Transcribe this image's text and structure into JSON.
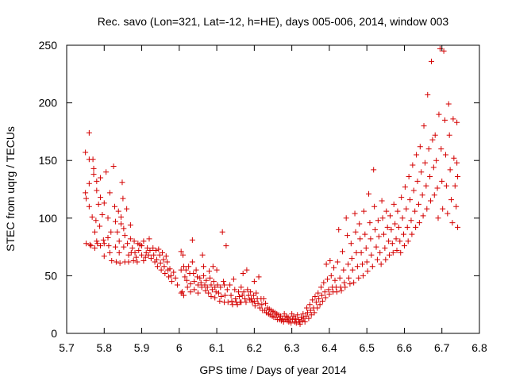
{
  "chart_data": {
    "type": "scatter",
    "title": "Rec. savo (Lon=321, Lat=-12, h=HE), days 005-006, 2014, window 003",
    "xlabel": "GPS time / Days of year 2014",
    "ylabel": "STEC from uqrg / TECUs",
    "xlim": [
      5.7,
      6.8
    ],
    "ylim": [
      0,
      250
    ],
    "xticks": [
      5.7,
      5.8,
      5.9,
      6,
      6.1,
      6.2,
      6.3,
      6.4,
      6.5,
      6.6,
      6.7,
      6.8
    ],
    "xtick_labels": [
      "5.7",
      "5.8",
      "5.9",
      "6",
      "6.1",
      "6.2",
      "6.3",
      "6.4",
      "6.5",
      "6.6",
      "6.7",
      "6.8"
    ],
    "yticks": [
      0,
      50,
      100,
      150,
      200,
      250
    ],
    "ytick_labels": [
      "0",
      "50",
      "100",
      "150",
      "200",
      "250"
    ],
    "marker": "+",
    "color": "#d40000",
    "grid": false,
    "legend": "none",
    "points": [
      [
        5.75,
        157
      ],
      [
        5.75,
        122
      ],
      [
        5.752,
        117
      ],
      [
        5.752,
        78
      ],
      [
        5.76,
        174
      ],
      [
        5.76,
        151
      ],
      [
        5.76,
        130
      ],
      [
        5.76,
        110
      ],
      [
        5.762,
        77
      ],
      [
        5.765,
        76
      ],
      [
        5.768,
        101
      ],
      [
        5.77,
        151
      ],
      [
        5.772,
        143
      ],
      [
        5.772,
        138
      ],
      [
        5.775,
        88
      ],
      [
        5.775,
        74
      ],
      [
        5.778,
        98
      ],
      [
        5.78,
        132
      ],
      [
        5.78,
        124
      ],
      [
        5.78,
        80
      ],
      [
        5.782,
        78
      ],
      [
        5.785,
        112
      ],
      [
        5.788,
        93
      ],
      [
        5.79,
        135
      ],
      [
        5.79,
        118
      ],
      [
        5.79,
        76
      ],
      [
        5.795,
        103
      ],
      [
        5.798,
        81
      ],
      [
        5.8,
        113
      ],
      [
        5.8,
        78
      ],
      [
        5.8,
        67
      ],
      [
        5.805,
        140
      ],
      [
        5.81,
        100
      ],
      [
        5.81,
        83
      ],
      [
        5.812,
        76
      ],
      [
        5.815,
        122
      ],
      [
        5.815,
        70
      ],
      [
        5.818,
        88
      ],
      [
        5.82,
        63
      ],
      [
        5.825,
        145
      ],
      [
        5.828,
        110
      ],
      [
        5.83,
        97
      ],
      [
        5.83,
        75
      ],
      [
        5.832,
        62
      ],
      [
        5.835,
        88
      ],
      [
        5.838,
        106
      ],
      [
        5.84,
        80
      ],
      [
        5.84,
        70
      ],
      [
        5.842,
        61
      ],
      [
        5.845,
        101
      ],
      [
        5.845,
        95
      ],
      [
        5.848,
        131
      ],
      [
        5.85,
        117
      ],
      [
        5.852,
        91
      ],
      [
        5.852,
        75
      ],
      [
        5.855,
        85
      ],
      [
        5.855,
        62
      ],
      [
        5.86,
        108
      ],
      [
        5.862,
        78
      ],
      [
        5.865,
        68
      ],
      [
        5.865,
        62
      ],
      [
        5.87,
        94
      ],
      [
        5.87,
        82
      ],
      [
        5.872,
        70
      ],
      [
        5.875,
        74
      ],
      [
        5.878,
        63
      ],
      [
        5.88,
        80
      ],
      [
        5.882,
        70
      ],
      [
        5.885,
        66
      ],
      [
        5.888,
        62
      ],
      [
        5.89,
        78
      ],
      [
        5.892,
        72
      ],
      [
        5.895,
        77
      ],
      [
        5.9,
        68
      ],
      [
        5.9,
        76
      ],
      [
        5.905,
        63
      ],
      [
        5.905,
        80
      ],
      [
        5.91,
        66
      ],
      [
        5.912,
        70
      ],
      [
        5.915,
        74
      ],
      [
        5.918,
        68
      ],
      [
        5.92,
        82
      ],
      [
        5.922,
        72
      ],
      [
        5.925,
        65
      ],
      [
        5.93,
        74
      ],
      [
        5.932,
        68
      ],
      [
        5.935,
        62
      ],
      [
        5.938,
        72
      ],
      [
        5.94,
        64
      ],
      [
        5.942,
        58
      ],
      [
        5.945,
        73
      ],
      [
        5.948,
        68
      ],
      [
        5.95,
        61
      ],
      [
        5.952,
        55
      ],
      [
        5.955,
        70
      ],
      [
        5.958,
        64
      ],
      [
        5.96,
        58
      ],
      [
        5.962,
        52
      ],
      [
        5.965,
        67
      ],
      [
        5.968,
        62
      ],
      [
        5.97,
        55
      ],
      [
        5.972,
        49
      ],
      [
        5.975,
        56
      ],
      [
        5.978,
        50
      ],
      [
        5.98,
        45
      ],
      [
        5.985,
        53
      ],
      [
        5.99,
        48
      ],
      [
        5.995,
        42
      ],
      [
        6.005,
        71
      ],
      [
        6.005,
        55
      ],
      [
        6.005,
        35
      ],
      [
        6.008,
        36
      ],
      [
        6.01,
        68
      ],
      [
        6.012,
        58
      ],
      [
        6.012,
        33
      ],
      [
        6.015,
        49
      ],
      [
        6.018,
        55
      ],
      [
        6.02,
        46
      ],
      [
        6.022,
        40
      ],
      [
        6.025,
        58
      ],
      [
        6.028,
        52
      ],
      [
        6.03,
        43
      ],
      [
        6.03,
        36
      ],
      [
        6.035,
        81
      ],
      [
        6.035,
        62
      ],
      [
        6.038,
        52
      ],
      [
        6.04,
        45
      ],
      [
        6.04,
        38
      ],
      [
        6.045,
        55
      ],
      [
        6.048,
        49
      ],
      [
        6.05,
        42
      ],
      [
        6.05,
        35
      ],
      [
        6.055,
        48
      ],
      [
        6.058,
        44
      ],
      [
        6.06,
        40
      ],
      [
        6.062,
        68
      ],
      [
        6.065,
        58
      ],
      [
        6.065,
        50
      ],
      [
        6.068,
        42
      ],
      [
        6.07,
        37
      ],
      [
        6.072,
        46
      ],
      [
        6.075,
        40
      ],
      [
        6.078,
        35
      ],
      [
        6.08,
        54
      ],
      [
        6.082,
        48
      ],
      [
        6.085,
        42
      ],
      [
        6.085,
        32
      ],
      [
        6.088,
        38
      ],
      [
        6.09,
        58
      ],
      [
        6.092,
        45
      ],
      [
        6.095,
        40
      ],
      [
        6.095,
        31
      ],
      [
        6.098,
        36
      ],
      [
        6.1,
        55
      ],
      [
        6.102,
        42
      ],
      [
        6.105,
        35
      ],
      [
        6.108,
        28
      ],
      [
        6.11,
        40
      ],
      [
        6.112,
        32
      ],
      [
        6.115,
        88
      ],
      [
        6.118,
        45
      ],
      [
        6.12,
        42
      ],
      [
        6.12,
        27
      ],
      [
        6.122,
        33
      ],
      [
        6.125,
        76
      ],
      [
        6.128,
        38
      ],
      [
        6.13,
        27
      ],
      [
        6.135,
        42
      ],
      [
        6.138,
        33
      ],
      [
        6.14,
        28
      ],
      [
        6.142,
        25
      ],
      [
        6.145,
        47
      ],
      [
        6.148,
        38
      ],
      [
        6.15,
        30
      ],
      [
        6.152,
        27
      ],
      [
        6.155,
        25
      ],
      [
        6.158,
        36
      ],
      [
        6.16,
        32
      ],
      [
        6.162,
        27
      ],
      [
        6.165,
        40
      ],
      [
        6.165,
        27
      ],
      [
        6.168,
        33
      ],
      [
        6.17,
        52
      ],
      [
        6.172,
        36
      ],
      [
        6.175,
        30
      ],
      [
        6.178,
        27
      ],
      [
        6.18,
        55
      ],
      [
        6.182,
        38
      ],
      [
        6.185,
        33
      ],
      [
        6.188,
        29
      ],
      [
        6.19,
        36
      ],
      [
        6.192,
        30
      ],
      [
        6.195,
        27
      ],
      [
        6.198,
        33
      ],
      [
        6.2,
        45
      ],
      [
        6.2,
        28
      ],
      [
        6.202,
        24
      ],
      [
        6.205,
        35
      ],
      [
        6.208,
        30
      ],
      [
        6.21,
        26
      ],
      [
        6.212,
        49
      ],
      [
        6.215,
        22
      ],
      [
        6.218,
        30
      ],
      [
        6.22,
        25
      ],
      [
        6.222,
        20
      ],
      [
        6.225,
        30
      ],
      [
        6.228,
        20
      ],
      [
        6.23,
        26
      ],
      [
        6.232,
        18
      ],
      [
        6.235,
        22
      ],
      [
        6.238,
        17
      ],
      [
        6.24,
        21
      ],
      [
        6.242,
        16
      ],
      [
        6.245,
        20
      ],
      [
        6.248,
        15
      ],
      [
        6.25,
        19
      ],
      [
        6.252,
        14
      ],
      [
        6.255,
        18
      ],
      [
        6.258,
        14
      ],
      [
        6.26,
        17
      ],
      [
        6.262,
        12
      ],
      [
        6.265,
        16
      ],
      [
        6.268,
        12
      ],
      [
        6.27,
        15
      ],
      [
        6.272,
        11
      ],
      [
        6.275,
        13
      ],
      [
        6.278,
        10
      ],
      [
        6.28,
        17
      ],
      [
        6.282,
        12
      ],
      [
        6.285,
        15
      ],
      [
        6.288,
        11
      ],
      [
        6.29,
        14
      ],
      [
        6.292,
        10
      ],
      [
        6.295,
        13
      ],
      [
        6.298,
        9
      ],
      [
        6.3,
        17
      ],
      [
        6.302,
        12
      ],
      [
        6.305,
        15
      ],
      [
        6.308,
        10
      ],
      [
        6.31,
        13
      ],
      [
        6.312,
        9
      ],
      [
        6.315,
        16
      ],
      [
        6.318,
        12
      ],
      [
        6.32,
        10
      ],
      [
        6.322,
        8
      ],
      [
        6.325,
        14
      ],
      [
        6.328,
        11
      ],
      [
        6.33,
        17
      ],
      [
        6.332,
        13
      ],
      [
        6.335,
        10
      ],
      [
        6.338,
        15
      ],
      [
        6.34,
        22
      ],
      [
        6.342,
        18
      ],
      [
        6.345,
        13
      ],
      [
        6.348,
        25
      ],
      [
        6.35,
        20
      ],
      [
        6.352,
        16
      ],
      [
        6.355,
        29
      ],
      [
        6.358,
        22
      ],
      [
        6.36,
        18
      ],
      [
        6.362,
        32
      ],
      [
        6.365,
        27
      ],
      [
        6.368,
        22
      ],
      [
        6.37,
        35
      ],
      [
        6.372,
        30
      ],
      [
        6.375,
        25
      ],
      [
        6.378,
        40
      ],
      [
        6.38,
        33
      ],
      [
        6.382,
        28
      ],
      [
        6.385,
        44
      ],
      [
        6.388,
        36
      ],
      [
        6.39,
        31
      ],
      [
        6.392,
        60
      ],
      [
        6.395,
        47
      ],
      [
        6.398,
        38
      ],
      [
        6.4,
        34
      ],
      [
        6.402,
        63
      ],
      [
        6.405,
        50
      ],
      [
        6.408,
        40
      ],
      [
        6.41,
        36
      ],
      [
        6.412,
        57
      ],
      [
        6.415,
        46
      ],
      [
        6.418,
        40
      ],
      [
        6.42,
        36
      ],
      [
        6.422,
        62
      ],
      [
        6.425,
        90
      ],
      [
        6.428,
        48
      ],
      [
        6.43,
        40
      ],
      [
        6.432,
        37
      ],
      [
        6.435,
        71
      ],
      [
        6.438,
        55
      ],
      [
        6.44,
        44
      ],
      [
        6.442,
        40
      ],
      [
        6.445,
        100
      ],
      [
        6.448,
        85
      ],
      [
        6.45,
        60
      ],
      [
        6.452,
        48
      ],
      [
        6.455,
        43
      ],
      [
        6.458,
        78
      ],
      [
        6.46,
        65
      ],
      [
        6.462,
        55
      ],
      [
        6.465,
        44
      ],
      [
        6.468,
        104
      ],
      [
        6.47,
        88
      ],
      [
        6.472,
        70
      ],
      [
        6.475,
        58
      ],
      [
        6.478,
        48
      ],
      [
        6.48,
        95
      ],
      [
        6.482,
        82
      ],
      [
        6.485,
        70
      ],
      [
        6.488,
        60
      ],
      [
        6.49,
        50
      ],
      [
        6.492,
        106
      ],
      [
        6.495,
        86
      ],
      [
        6.498,
        74
      ],
      [
        6.5,
        62
      ],
      [
        6.502,
        54
      ],
      [
        6.505,
        121
      ],
      [
        6.508,
        96
      ],
      [
        6.51,
        82
      ],
      [
        6.512,
        68
      ],
      [
        6.515,
        58
      ],
      [
        6.518,
        142
      ],
      [
        6.52,
        110
      ],
      [
        6.522,
        90
      ],
      [
        6.525,
        75
      ],
      [
        6.528,
        64
      ],
      [
        6.53,
        98
      ],
      [
        6.532,
        84
      ],
      [
        6.535,
        70
      ],
      [
        6.538,
        60
      ],
      [
        6.54,
        115
      ],
      [
        6.542,
        100
      ],
      [
        6.545,
        86
      ],
      [
        6.548,
        74
      ],
      [
        6.55,
        64
      ],
      [
        6.552,
        106
      ],
      [
        6.555,
        92
      ],
      [
        6.558,
        80
      ],
      [
        6.56,
        68
      ],
      [
        6.562,
        102
      ],
      [
        6.565,
        90
      ],
      [
        6.568,
        78
      ],
      [
        6.57,
        70
      ],
      [
        6.572,
        112
      ],
      [
        6.575,
        95
      ],
      [
        6.578,
        82
      ],
      [
        6.58,
        72
      ],
      [
        6.582,
        106
      ],
      [
        6.585,
        92
      ],
      [
        6.588,
        80
      ],
      [
        6.59,
        70
      ],
      [
        6.592,
        118
      ],
      [
        6.595,
        100
      ],
      [
        6.598,
        86
      ],
      [
        6.6,
        76
      ],
      [
        6.602,
        127
      ],
      [
        6.605,
        108
      ],
      [
        6.608,
        92
      ],
      [
        6.61,
        80
      ],
      [
        6.612,
        136
      ],
      [
        6.615,
        116
      ],
      [
        6.618,
        98
      ],
      [
        6.62,
        86
      ],
      [
        6.622,
        146
      ],
      [
        6.625,
        124
      ],
      [
        6.628,
        106
      ],
      [
        6.63,
        92
      ],
      [
        6.632,
        155
      ],
      [
        6.635,
        132
      ],
      [
        6.638,
        112
      ],
      [
        6.64,
        96
      ],
      [
        6.642,
        162
      ],
      [
        6.645,
        140
      ],
      [
        6.648,
        120
      ],
      [
        6.65,
        102
      ],
      [
        6.652,
        180
      ],
      [
        6.655,
        148
      ],
      [
        6.658,
        128
      ],
      [
        6.66,
        108
      ],
      [
        6.662,
        207
      ],
      [
        6.665,
        160
      ],
      [
        6.668,
        136
      ],
      [
        6.67,
        115
      ],
      [
        6.672,
        236
      ],
      [
        6.675,
        168
      ],
      [
        6.678,
        144
      ],
      [
        6.68,
        120
      ],
      [
        6.682,
        172
      ],
      [
        6.685,
        150
      ],
      [
        6.688,
        126
      ],
      [
        6.69,
        100
      ],
      [
        6.692,
        190
      ],
      [
        6.695,
        247
      ],
      [
        6.698,
        160
      ],
      [
        6.7,
        132
      ],
      [
        6.702,
        108
      ],
      [
        6.705,
        245
      ],
      [
        6.708,
        185
      ],
      [
        6.71,
        155
      ],
      [
        6.712,
        128
      ],
      [
        6.715,
        104
      ],
      [
        6.718,
        199
      ],
      [
        6.72,
        172
      ],
      [
        6.722,
        142
      ],
      [
        6.725,
        116
      ],
      [
        6.728,
        96
      ],
      [
        6.73,
        186
      ],
      [
        6.732,
        152
      ],
      [
        6.735,
        128
      ],
      [
        6.738,
        110
      ],
      [
        6.74,
        183
      ],
      [
        6.74,
        148
      ],
      [
        6.742,
        136
      ],
      [
        6.742,
        92
      ]
    ]
  }
}
